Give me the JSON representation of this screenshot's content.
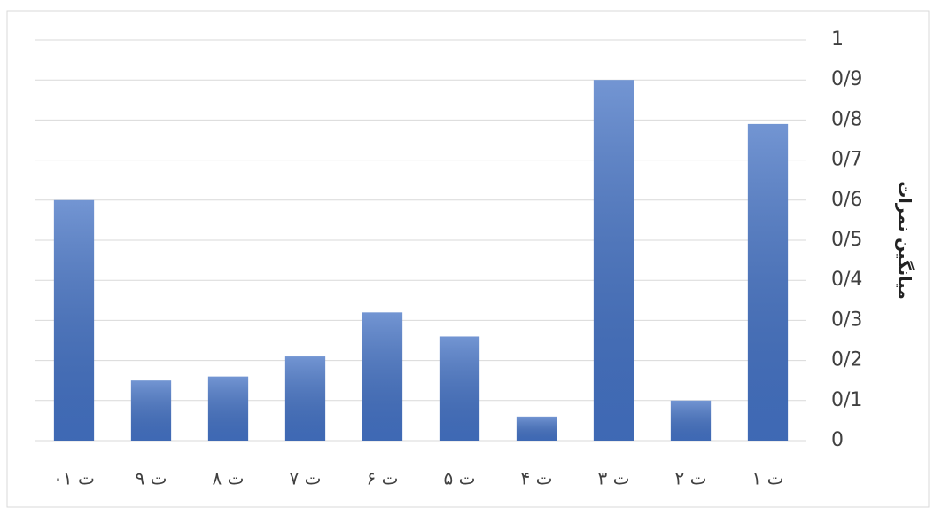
{
  "chart_data": {
    "type": "bar",
    "y_axis_label": "میانگین نمرات",
    "categories": [
      "ت ۱",
      "ت ۲",
      "ت ۳",
      "ت ۴",
      "ت ۵",
      "ت ۶",
      "ت ۷",
      "ت ۸",
      "ت ۹",
      "ت ۱۰"
    ],
    "values": [
      0.79,
      0.1,
      0.9,
      0.06,
      0.26,
      0.32,
      0.21,
      0.16,
      0.15,
      0.6
    ],
    "color": "#4472c4",
    "ylim": [
      0,
      1
    ],
    "yticks": [
      0,
      {
        "value": 0.1,
        "label": "0/1"
      },
      {
        "value": 0.2,
        "label": "0/2"
      },
      {
        "value": 0.3,
        "label": "0/3"
      },
      {
        "value": 0.4,
        "label": "0/4"
      },
      {
        "value": 0.5,
        "label": "0/5"
      },
      {
        "value": 0.6,
        "label": "0/6"
      },
      {
        "value": 0.7,
        "label": "0/7"
      },
      {
        "value": 0.8,
        "label": "0/8"
      },
      {
        "value": 0.9,
        "label": "0/9"
      },
      1
    ],
    "y_axis_side": "right",
    "x_direction": "rtl",
    "grid": true
  }
}
